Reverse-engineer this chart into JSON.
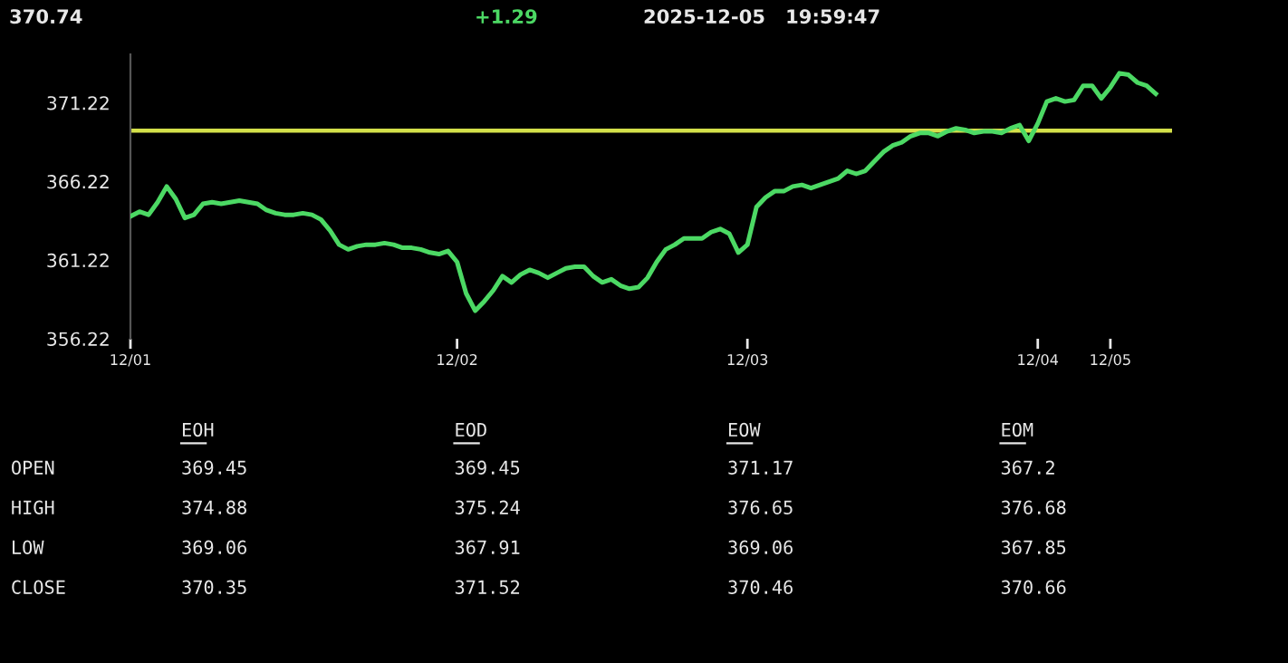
{
  "chart_data": [
    {
      "type": "line",
      "annotations": [
        "370.74",
        "+1.29",
        "2025-12-05   19:59:47"
      ],
      "categories": [
        "12/01",
        null,
        null,
        null,
        null,
        null,
        null,
        null,
        null,
        null,
        null,
        null,
        null,
        null,
        null,
        null,
        null,
        null,
        null,
        null,
        null,
        null,
        null,
        null,
        null,
        null,
        null,
        null,
        null,
        null,
        null,
        null,
        null,
        null,
        null,
        null,
        "12/02",
        null,
        null,
        null,
        null,
        null,
        null,
        null,
        null,
        null,
        null,
        null,
        null,
        null,
        null,
        null,
        null,
        null,
        null,
        null,
        null,
        null,
        null,
        null,
        null,
        null,
        null,
        null,
        null,
        null,
        null,
        null,
        "12/03",
        null,
        null,
        null,
        null,
        null,
        null,
        null,
        null,
        null,
        null,
        null,
        null,
        null,
        null,
        null,
        null,
        null,
        null,
        null,
        null,
        null,
        null,
        null,
        null,
        null,
        null,
        null,
        null,
        null,
        null,
        null,
        "12/04",
        null,
        null,
        null,
        null,
        null,
        null,
        null,
        "12/05",
        null,
        null,
        null,
        null,
        null
      ],
      "series": [
        {
          "color": "#4cd964",
          "values": [
            364.0,
            364.3,
            364.1,
            364.9,
            365.9,
            365.1,
            363.9,
            364.1,
            364.8,
            364.9,
            364.8,
            364.9,
            365.0,
            364.9,
            364.8,
            364.4,
            364.2,
            364.1,
            364.1,
            364.2,
            364.1,
            363.8,
            363.1,
            362.2,
            361.9,
            362.1,
            362.2,
            362.2,
            362.3,
            362.2,
            362.0,
            362.0,
            361.9,
            361.7,
            361.6,
            361.8,
            361.1,
            359.1,
            358.0,
            358.6,
            359.3,
            360.2,
            359.8,
            360.3,
            360.6,
            360.4,
            360.1,
            360.4,
            360.7,
            360.8,
            360.8,
            360.2,
            359.8,
            360.0,
            359.6,
            359.4,
            359.5,
            360.1,
            361.1,
            361.9,
            362.2,
            362.6,
            362.6,
            362.6,
            363.0,
            363.2,
            362.9,
            361.7,
            362.2,
            364.6,
            365.2,
            365.6,
            365.6,
            365.9,
            366.0,
            365.8,
            366.0,
            366.2,
            366.4,
            366.9,
            366.7,
            366.9,
            367.5,
            368.1,
            368.5,
            368.7,
            369.1,
            369.3,
            369.3,
            369.1,
            369.4,
            369.6,
            369.5,
            369.3,
            369.4,
            369.4,
            369.3,
            369.6,
            369.8,
            368.8,
            369.9,
            371.3,
            371.5,
            371.3,
            371.4,
            372.3,
            372.3,
            371.5,
            372.2,
            373.1,
            373.0,
            372.5,
            372.3,
            371.8
          ]
        }
      ],
      "ref_lines": [
        {
          "axis": "y",
          "value": 369.45,
          "color": "#d4e04a"
        }
      ],
      "ylim": [
        356.22,
        374.3
      ],
      "yticks": [
        356.22,
        361.22,
        366.22,
        371.22
      ],
      "marker": "none",
      "line_style": "solid"
    },
    {
      "type": "heatmap",
      "categories": [
        "EOH",
        "EOD",
        "EOW",
        "EOM"
      ],
      "y_categories": [
        "OPEN",
        "HIGH",
        "LOW",
        "CLOSE"
      ],
      "cells": [
        [
          369.45,
          369.45,
          371.17,
          367.2
        ],
        [
          374.88,
          375.24,
          376.65,
          376.68
        ],
        [
          369.06,
          367.91,
          369.06,
          367.85
        ],
        [
          370.35,
          371.52,
          370.46,
          370.66
        ]
      ],
      "data_labels": true
    }
  ]
}
